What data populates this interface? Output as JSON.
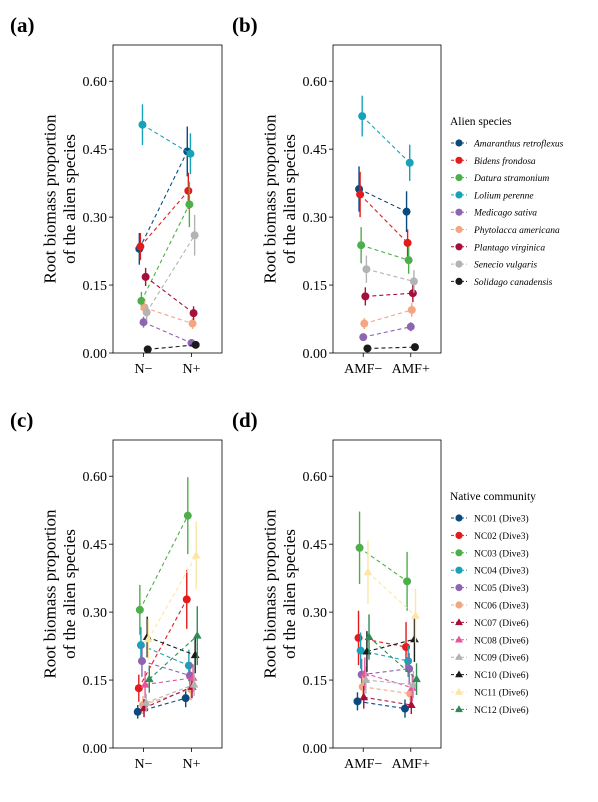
{
  "chart_data": [
    {
      "type": "line",
      "panel": "(a)",
      "categories": [
        "N−",
        "N+"
      ],
      "ylabel": [
        "Root biomass proportion",
        "of the alien species"
      ],
      "ylim": [
        0,
        0.68
      ],
      "yticks": [
        "0.00",
        "0.15",
        "0.30",
        "0.45",
        "0.60"
      ],
      "legend_group": "alien",
      "series": [
        {
          "idx": 0,
          "values": [
            0.23,
            0.445
          ],
          "err": [
            0.035,
            0.055
          ]
        },
        {
          "idx": 1,
          "values": [
            0.235,
            0.358
          ],
          "err": [
            0.03,
            0.04
          ]
        },
        {
          "idx": 2,
          "values": [
            0.115,
            0.328
          ],
          "err": [
            0.02,
            0.05
          ]
        },
        {
          "idx": 3,
          "values": [
            0.504,
            0.44
          ],
          "err": [
            0.045,
            0.045
          ]
        },
        {
          "idx": 4,
          "values": [
            0.068,
            0.022
          ],
          "err": [
            0.012,
            0.008
          ]
        },
        {
          "idx": 5,
          "values": [
            0.1,
            0.065
          ],
          "err": [
            0.015,
            0.012
          ]
        },
        {
          "idx": 6,
          "values": [
            0.168,
            0.088
          ],
          "err": [
            0.02,
            0.015
          ]
        },
        {
          "idx": 7,
          "values": [
            0.09,
            0.26
          ],
          "err": [
            0.018,
            0.045
          ]
        },
        {
          "idx": 8,
          "values": [
            0.008,
            0.018
          ],
          "err": [
            0.003,
            0.004
          ]
        }
      ]
    },
    {
      "type": "line",
      "panel": "(b)",
      "categories": [
        "AMF−",
        "AMF+"
      ],
      "ylabel": [
        "Root biomass proportion",
        "of the alien species"
      ],
      "ylim": [
        0,
        0.68
      ],
      "yticks": [
        "0.00",
        "0.15",
        "0.30",
        "0.45",
        "0.60"
      ],
      "legend_group": "alien",
      "series": [
        {
          "idx": 0,
          "values": [
            0.362,
            0.312
          ],
          "err": [
            0.05,
            0.045
          ]
        },
        {
          "idx": 1,
          "values": [
            0.35,
            0.243
          ],
          "err": [
            0.05,
            0.03
          ]
        },
        {
          "idx": 2,
          "values": [
            0.238,
            0.205
          ],
          "err": [
            0.04,
            0.03
          ]
        },
        {
          "idx": 3,
          "values": [
            0.523,
            0.42
          ],
          "err": [
            0.045,
            0.04
          ]
        },
        {
          "idx": 4,
          "values": [
            0.035,
            0.058
          ],
          "err": [
            0.008,
            0.01
          ]
        },
        {
          "idx": 5,
          "values": [
            0.065,
            0.095
          ],
          "err": [
            0.012,
            0.015
          ]
        },
        {
          "idx": 6,
          "values": [
            0.125,
            0.132
          ],
          "err": [
            0.02,
            0.02
          ]
        },
        {
          "idx": 7,
          "values": [
            0.185,
            0.158
          ],
          "err": [
            0.03,
            0.025
          ]
        },
        {
          "idx": 8,
          "values": [
            0.01,
            0.013
          ],
          "err": [
            0.003,
            0.003
          ]
        }
      ]
    },
    {
      "type": "line",
      "panel": "(c)",
      "categories": [
        "N−",
        "N+"
      ],
      "ylabel": [
        "Root biomass proportion",
        "of the alien species"
      ],
      "ylim": [
        0,
        0.68
      ],
      "yticks": [
        "0.00",
        "0.15",
        "0.30",
        "0.45",
        "0.60"
      ],
      "legend_group": "native",
      "series": [
        {
          "idx": 0,
          "values": [
            0.08,
            0.11
          ],
          "err": [
            0.015,
            0.02
          ]
        },
        {
          "idx": 1,
          "values": [
            0.132,
            0.328
          ],
          "err": [
            0.03,
            0.065
          ]
        },
        {
          "idx": 2,
          "values": [
            0.305,
            0.513
          ],
          "err": [
            0.055,
            0.085
          ]
        },
        {
          "idx": 3,
          "values": [
            0.227,
            0.182
          ],
          "err": [
            0.04,
            0.035
          ]
        },
        {
          "idx": 4,
          "values": [
            0.192,
            0.16
          ],
          "err": [
            0.035,
            0.03
          ]
        },
        {
          "idx": 5,
          "values": [
            0.095,
            0.13
          ],
          "err": [
            0.02,
            0.025
          ]
        },
        {
          "idx": 6,
          "values": [
            0.088,
            0.135
          ],
          "err": [
            0.02,
            0.025
          ]
        },
        {
          "idx": 7,
          "values": [
            0.14,
            0.155
          ],
          "err": [
            0.03,
            0.03
          ]
        },
        {
          "idx": 8,
          "values": [
            0.1,
            0.14
          ],
          "err": [
            0.02,
            0.025
          ]
        },
        {
          "idx": 9,
          "values": [
            0.245,
            0.205
          ],
          "err": [
            0.045,
            0.04
          ]
        },
        {
          "idx": 10,
          "values": [
            0.24,
            0.425
          ],
          "err": [
            0.045,
            0.075
          ]
        },
        {
          "idx": 11,
          "values": [
            0.152,
            0.248
          ],
          "err": [
            0.03,
            0.065
          ]
        }
      ]
    },
    {
      "type": "line",
      "panel": "(d)",
      "categories": [
        "AMF−",
        "AMF+"
      ],
      "ylabel": [
        "Root biomass proportion",
        "of the alien species"
      ],
      "ylim": [
        0,
        0.68
      ],
      "yticks": [
        "0.00",
        "0.15",
        "0.30",
        "0.45",
        "0.60"
      ],
      "legend_group": "native",
      "series": [
        {
          "idx": 0,
          "values": [
            0.103,
            0.087
          ],
          "err": [
            0.02,
            0.02
          ]
        },
        {
          "idx": 1,
          "values": [
            0.243,
            0.223
          ],
          "err": [
            0.06,
            0.055
          ]
        },
        {
          "idx": 2,
          "values": [
            0.442,
            0.368
          ],
          "err": [
            0.08,
            0.065
          ]
        },
        {
          "idx": 3,
          "values": [
            0.215,
            0.192
          ],
          "err": [
            0.04,
            0.035
          ]
        },
        {
          "idx": 4,
          "values": [
            0.162,
            0.175
          ],
          "err": [
            0.035,
            0.035
          ]
        },
        {
          "idx": 5,
          "values": [
            0.135,
            0.12
          ],
          "err": [
            0.03,
            0.025
          ]
        },
        {
          "idx": 6,
          "values": [
            0.112,
            0.095
          ],
          "err": [
            0.025,
            0.02
          ]
        },
        {
          "idx": 7,
          "values": [
            0.165,
            0.133
          ],
          "err": [
            0.035,
            0.03
          ]
        },
        {
          "idx": 8,
          "values": [
            0.15,
            0.14
          ],
          "err": [
            0.03,
            0.03
          ]
        },
        {
          "idx": 9,
          "values": [
            0.213,
            0.24
          ],
          "err": [
            0.045,
            0.05
          ]
        },
        {
          "idx": 10,
          "values": [
            0.388,
            0.292
          ],
          "err": [
            0.07,
            0.06
          ]
        },
        {
          "idx": 11,
          "values": [
            0.245,
            0.152
          ],
          "err": [
            0.05,
            0.035
          ]
        }
      ]
    }
  ],
  "legends": {
    "alien": {
      "title": "Alien species",
      "items": [
        {
          "label": "Amaranthus retroflexus",
          "color": "#0b4a7d",
          "shape": "circle"
        },
        {
          "label": "Bidens frondosa",
          "color": "#e41a1c",
          "shape": "circle"
        },
        {
          "label": "Datura stramonium",
          "color": "#4daf4a",
          "shape": "circle"
        },
        {
          "label": "Lolium perenne",
          "color": "#17a2b8",
          "shape": "circle"
        },
        {
          "label": "Medicago sativa",
          "color": "#8e65b0",
          "shape": "circle"
        },
        {
          "label": "Phytolacca americana",
          "color": "#f4a582",
          "shape": "circle"
        },
        {
          "label": "Plantago virginica",
          "color": "#a50f3a",
          "shape": "circle"
        },
        {
          "label": "Senecio vulgaris",
          "color": "#b3b3b3",
          "shape": "circle"
        },
        {
          "label": "Solidago canadensis",
          "color": "#1a1a1a",
          "shape": "circle"
        }
      ]
    },
    "native": {
      "title": "Native community",
      "items": [
        {
          "label": "NC01 (Dive3)",
          "color": "#0b4a7d",
          "shape": "circle"
        },
        {
          "label": "NC02 (Dive3)",
          "color": "#e41a1c",
          "shape": "circle"
        },
        {
          "label": "NC03 (Dive3)",
          "color": "#4daf4a",
          "shape": "circle"
        },
        {
          "label": "NC04 (Dive3)",
          "color": "#17a2b8",
          "shape": "circle"
        },
        {
          "label": "NC05 (Dive3)",
          "color": "#8e65b0",
          "shape": "circle"
        },
        {
          "label": "NC06 (Dive3)",
          "color": "#f4a582",
          "shape": "circle"
        },
        {
          "label": "NC07 (Dive6)",
          "color": "#a50f3a",
          "shape": "triangle"
        },
        {
          "label": "NC08 (Dive6)",
          "color": "#e7549a",
          "shape": "triangle"
        },
        {
          "label": "NC09 (Dive6)",
          "color": "#b3b3b3",
          "shape": "triangle"
        },
        {
          "label": "NC10 (Dive6)",
          "color": "#1a1a1a",
          "shape": "triangle"
        },
        {
          "label": "NC11 (Dive6)",
          "color": "#fde5a5",
          "shape": "triangle"
        },
        {
          "label": "NC12 (Dive6)",
          "color": "#2e8b57",
          "shape": "triangle"
        }
      ]
    }
  }
}
